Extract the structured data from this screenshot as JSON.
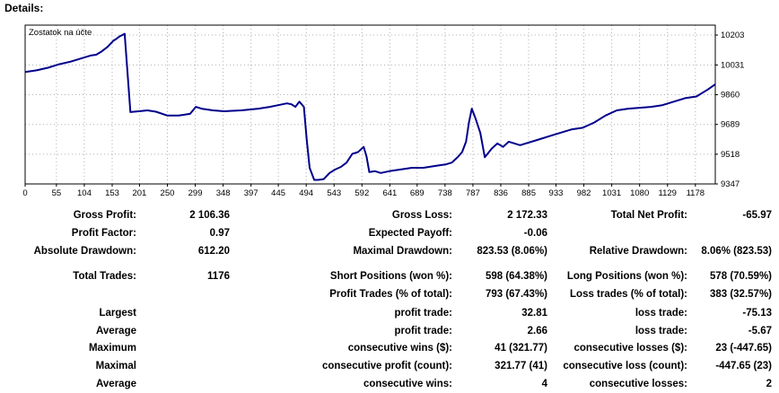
{
  "header": {
    "title": "Details:"
  },
  "chart_data": {
    "type": "line",
    "title": "Zostatok na účte",
    "xlabel": "",
    "ylabel": "",
    "xlim": [
      0,
      1213
    ],
    "ylim": [
      9347,
      10260
    ],
    "x_ticks": [
      0,
      55,
      104,
      153,
      201,
      250,
      299,
      348,
      397,
      445,
      494,
      543,
      592,
      641,
      689,
      738,
      787,
      836,
      885,
      933,
      982,
      1031,
      1080,
      1129,
      1178
    ],
    "y_ticks": [
      9347,
      9518,
      9689,
      9860,
      10031,
      10203
    ],
    "grid": true,
    "line_color": "#00008b",
    "series": [
      {
        "x": [
          0,
          20,
          40,
          60,
          80,
          100,
          115,
          125,
          135,
          145,
          155,
          160,
          166,
          175,
          185,
          200,
          215,
          230,
          250,
          270,
          290,
          300,
          310,
          330,
          350,
          380,
          410,
          430,
          445,
          460,
          468,
          475,
          482,
          490,
          495,
          500,
          508,
          515,
          525,
          535,
          545,
          555,
          565,
          575,
          585,
          595,
          600,
          605,
          615,
          625,
          640,
          660,
          680,
          700,
          720,
          740,
          750,
          760,
          768,
          775,
          780,
          785,
          792,
          800,
          808,
          820,
          830,
          840,
          850,
          870,
          900,
          930,
          960,
          980,
          1000,
          1020,
          1040,
          1060,
          1080,
          1100,
          1120,
          1140,
          1160,
          1180,
          1200,
          1213
        ],
        "y": [
          9990,
          10000,
          10015,
          10035,
          10050,
          10070,
          10085,
          10090,
          10110,
          10135,
          10170,
          10180,
          10195,
          10210,
          9760,
          9765,
          9770,
          9762,
          9740,
          9740,
          9750,
          9790,
          9780,
          9770,
          9765,
          9770,
          9780,
          9790,
          9800,
          9810,
          9805,
          9790,
          9820,
          9790,
          9600,
          9440,
          9370,
          9370,
          9375,
          9410,
          9430,
          9445,
          9470,
          9520,
          9530,
          9560,
          9505,
          9415,
          9420,
          9410,
          9420,
          9430,
          9440,
          9440,
          9450,
          9460,
          9470,
          9500,
          9530,
          9590,
          9700,
          9780,
          9720,
          9640,
          9500,
          9550,
          9580,
          9560,
          9590,
          9570,
          9600,
          9630,
          9660,
          9670,
          9700,
          9740,
          9770,
          9780,
          9785,
          9790,
          9800,
          9820,
          9840,
          9850,
          9890,
          9920
        ]
      }
    ]
  },
  "stats": {
    "row1": {
      "gross_profit_label": "Gross Profit:",
      "gross_profit_value": "2 106.36",
      "gross_loss_label": "Gross Loss:",
      "gross_loss_value": "2 172.33",
      "total_net_profit_label": "Total Net Profit:",
      "total_net_profit_value": "-65.97"
    },
    "row2": {
      "profit_factor_label": "Profit Factor:",
      "profit_factor_value": "0.97",
      "expected_payoff_label": "Expected Payoff:",
      "expected_payoff_value": "-0.06"
    },
    "row3": {
      "absolute_drawdown_label": "Absolute Drawdown:",
      "absolute_drawdown_value": "612.20",
      "maximal_drawdown_label": "Maximal Drawdown:",
      "maximal_drawdown_value": "823.53 (8.06%)",
      "relative_drawdown_label": "Relative Drawdown:",
      "relative_drawdown_value": "8.06% (823.53)"
    },
    "row4": {
      "total_trades_label": "Total Trades:",
      "total_trades_value": "1176",
      "short_positions_label": "Short Positions (won %):",
      "short_positions_value": "598 (64.38%)",
      "long_positions_label": "Long Positions (won %):",
      "long_positions_value": "578 (70.59%)"
    },
    "row5": {
      "profit_trades_label": "Profit Trades (% of total):",
      "profit_trades_value": "793 (67.43%)",
      "loss_trades_label": "Loss trades (% of total):",
      "loss_trades_value": "383 (32.57%)"
    },
    "row6": {
      "col1_label": "Largest",
      "profit_label": "profit trade:",
      "profit_value": "32.81",
      "loss_label": "loss trade:",
      "loss_value": "-75.13"
    },
    "row7": {
      "col1_label": "Average",
      "profit_label": "profit trade:",
      "profit_value": "2.66",
      "loss_label": "loss trade:",
      "loss_value": "-5.67"
    },
    "row8": {
      "col1_label": "Maximum",
      "profit_label": "consecutive wins ($):",
      "profit_value": "41 (321.77)",
      "loss_label": "consecutive losses ($):",
      "loss_value": "23 (-447.65)"
    },
    "row9": {
      "col1_label": "Maximal",
      "profit_label": "consecutive profit (count):",
      "profit_value": "321.77 (41)",
      "loss_label": "consecutive loss (count):",
      "loss_value": "-447.65 (23)"
    },
    "row10": {
      "col1_label": "Average",
      "profit_label": "consecutive wins:",
      "profit_value": "4",
      "loss_label": "consecutive losses:",
      "loss_value": "2"
    }
  }
}
